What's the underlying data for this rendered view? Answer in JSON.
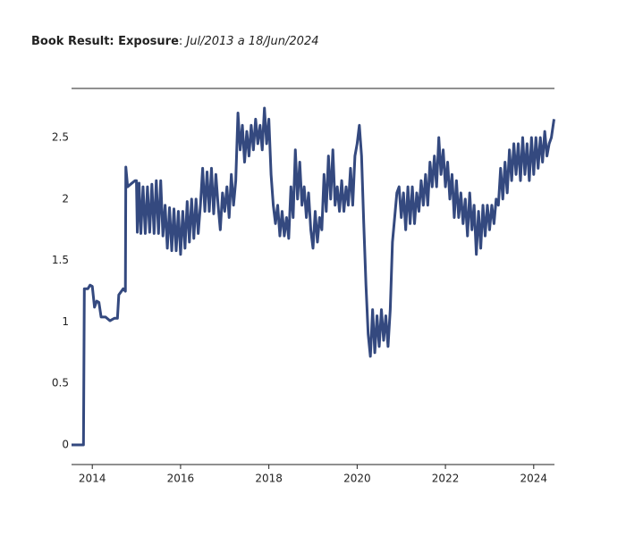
{
  "chart_data": {
    "type": "line",
    "title": "Book Result: Exposure",
    "title_separator": ":",
    "subtitle": "Jul/2013 a 18/Jun/2024",
    "xlim": [
      2013.53,
      2024.47
    ],
    "xticks": [
      2014,
      2016,
      2018,
      2020,
      2022,
      2024
    ],
    "ylim": [
      -0.16,
      2.9
    ],
    "yticks": [
      0,
      0.5,
      1,
      1.5,
      2,
      2.5
    ],
    "grid": false,
    "series": [
      {
        "name": "Exposure",
        "color": "#34497f",
        "x": [
          2013.53,
          2013.8,
          2013.82,
          2013.9,
          2013.95,
          2014.0,
          2014.05,
          2014.1,
          2014.15,
          2014.2,
          2014.3,
          2014.4,
          2014.5,
          2014.57,
          2014.6,
          2014.7,
          2014.75,
          2014.76,
          2014.8,
          2014.9,
          2014.97,
          2015.0,
          2015.02,
          2015.06,
          2015.1,
          2015.15,
          2015.2,
          2015.25,
          2015.3,
          2015.35,
          2015.4,
          2015.45,
          2015.5,
          2015.55,
          2015.6,
          2015.65,
          2015.7,
          2015.75,
          2015.8,
          2015.85,
          2015.9,
          2015.95,
          2016.0,
          2016.05,
          2016.1,
          2016.15,
          2016.2,
          2016.25,
          2016.3,
          2016.35,
          2016.4,
          2016.45,
          2016.5,
          2016.55,
          2016.6,
          2016.65,
          2016.7,
          2016.75,
          2016.8,
          2016.85,
          2016.9,
          2016.95,
          2017.0,
          2017.05,
          2017.1,
          2017.15,
          2017.2,
          2017.25,
          2017.3,
          2017.35,
          2017.4,
          2017.45,
          2017.5,
          2017.55,
          2017.6,
          2017.65,
          2017.7,
          2017.75,
          2017.8,
          2017.85,
          2017.9,
          2017.95,
          2018.0,
          2018.05,
          2018.1,
          2018.15,
          2018.2,
          2018.25,
          2018.3,
          2018.35,
          2018.4,
          2018.45,
          2018.5,
          2018.55,
          2018.6,
          2018.65,
          2018.7,
          2018.75,
          2018.8,
          2018.85,
          2018.9,
          2018.95,
          2019.0,
          2019.05,
          2019.1,
          2019.15,
          2019.2,
          2019.25,
          2019.3,
          2019.35,
          2019.4,
          2019.45,
          2019.5,
          2019.55,
          2019.6,
          2019.65,
          2019.7,
          2019.75,
          2019.8,
          2019.85,
          2019.9,
          2019.95,
          2020.0,
          2020.05,
          2020.1,
          2020.15,
          2020.2,
          2020.25,
          2020.3,
          2020.35,
          2020.4,
          2020.45,
          2020.5,
          2020.55,
          2020.6,
          2020.65,
          2020.7,
          2020.75,
          2020.8,
          2020.85,
          2020.9,
          2020.95,
          2021.0,
          2021.05,
          2021.1,
          2021.15,
          2021.2,
          2021.25,
          2021.3,
          2021.35,
          2021.4,
          2021.45,
          2021.5,
          2021.55,
          2021.6,
          2021.65,
          2021.7,
          2021.75,
          2021.8,
          2021.85,
          2021.9,
          2021.95,
          2022.0,
          2022.05,
          2022.1,
          2022.15,
          2022.2,
          2022.25,
          2022.3,
          2022.35,
          2022.4,
          2022.45,
          2022.5,
          2022.55,
          2022.6,
          2022.65,
          2022.7,
          2022.75,
          2022.8,
          2022.85,
          2022.9,
          2022.95,
          2023.0,
          2023.05,
          2023.1,
          2023.15,
          2023.2,
          2023.25,
          2023.3,
          2023.35,
          2023.4,
          2023.45,
          2023.5,
          2023.55,
          2023.6,
          2023.65,
          2023.7,
          2023.75,
          2023.8,
          2023.85,
          2023.9,
          2023.95,
          2024.0,
          2024.05,
          2024.1,
          2024.15,
          2024.2,
          2024.25,
          2024.3,
          2024.35,
          2024.4,
          2024.46
        ],
        "values": [
          0,
          0,
          1.27,
          1.27,
          1.3,
          1.29,
          1.12,
          1.17,
          1.16,
          1.04,
          1.04,
          1.01,
          1.03,
          1.03,
          1.22,
          1.27,
          1.25,
          2.26,
          2.1,
          2.13,
          2.15,
          2.15,
          1.73,
          2.13,
          1.72,
          2.1,
          1.72,
          2.1,
          1.73,
          2.12,
          1.72,
          2.15,
          1.72,
          2.15,
          1.7,
          1.95,
          1.6,
          1.93,
          1.58,
          1.92,
          1.58,
          1.9,
          1.55,
          1.9,
          1.6,
          1.98,
          1.65,
          2.0,
          1.68,
          2.0,
          1.72,
          1.95,
          2.25,
          1.9,
          2.22,
          1.9,
          2.25,
          1.88,
          2.2,
          1.95,
          1.75,
          2.05,
          1.9,
          2.1,
          1.85,
          2.2,
          1.95,
          2.15,
          2.7,
          2.4,
          2.6,
          2.3,
          2.55,
          2.35,
          2.6,
          2.4,
          2.65,
          2.45,
          2.6,
          2.4,
          2.74,
          2.45,
          2.65,
          2.2,
          1.95,
          1.8,
          1.95,
          1.7,
          1.9,
          1.7,
          1.85,
          1.68,
          2.1,
          1.85,
          2.4,
          2.0,
          2.3,
          1.95,
          2.1,
          1.85,
          2.05,
          1.75,
          1.6,
          1.9,
          1.65,
          1.85,
          1.75,
          2.2,
          1.9,
          2.35,
          2.0,
          2.4,
          1.95,
          2.1,
          1.9,
          2.15,
          1.9,
          2.1,
          1.95,
          2.25,
          1.95,
          2.35,
          2.45,
          2.6,
          2.35,
          1.8,
          1.3,
          0.9,
          0.72,
          1.1,
          0.75,
          1.05,
          0.8,
          1.1,
          0.85,
          1.05,
          0.8,
          1.1,
          1.65,
          1.85,
          2.05,
          2.1,
          1.85,
          2.05,
          1.75,
          2.1,
          1.8,
          2.1,
          1.8,
          2.05,
          1.9,
          2.15,
          1.95,
          2.2,
          1.95,
          2.3,
          2.1,
          2.35,
          2.1,
          2.5,
          2.2,
          2.4,
          2.1,
          2.3,
          2.0,
          2.2,
          1.85,
          2.15,
          1.85,
          2.05,
          1.8,
          2.0,
          1.7,
          2.05,
          1.75,
          1.95,
          1.55,
          1.9,
          1.6,
          1.95,
          1.7,
          1.95,
          1.75,
          1.95,
          1.8,
          2.0,
          1.95,
          2.25,
          2.0,
          2.3,
          2.05,
          2.4,
          2.15,
          2.45,
          2.2,
          2.45,
          2.15,
          2.5,
          2.2,
          2.45,
          2.15,
          2.5,
          2.2,
          2.5,
          2.25,
          2.5,
          2.3,
          2.55,
          2.35,
          2.45,
          2.5,
          2.65
        ]
      }
    ]
  }
}
